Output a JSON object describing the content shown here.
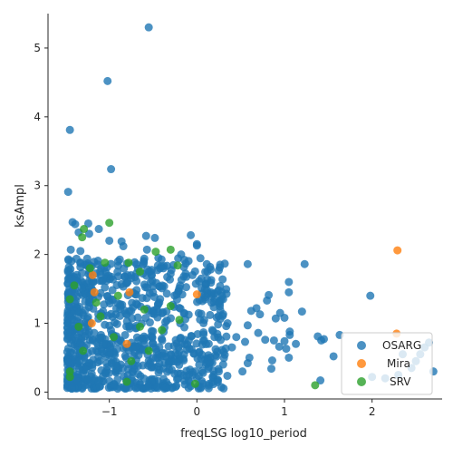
{
  "chart_data": {
    "type": "scatter",
    "title": "",
    "xlabel": "freqLSG log10_period",
    "ylabel": "ksAmpl",
    "xlim": [
      -1.7,
      2.8
    ],
    "ylim": [
      -0.1,
      5.5
    ],
    "xticks": [
      -1,
      0,
      1,
      2
    ],
    "yticks": [
      0,
      1,
      2,
      3,
      4,
      5
    ],
    "xtick_labels": [
      "−1",
      "0",
      "1",
      "2"
    ],
    "ytick_labels": [
      "0",
      "1",
      "2",
      "3",
      "4",
      "5"
    ],
    "grid": false,
    "legend_position": "lower-right",
    "marker_alpha": 0.8,
    "series": [
      {
        "name": "OSARG",
        "color": "#1f77b4",
        "points": [
          [
            -0.55,
            5.3
          ],
          [
            -1.02,
            4.52
          ],
          [
            -1.45,
            3.81
          ],
          [
            -0.98,
            3.24
          ],
          [
            -1.47,
            2.91
          ],
          [
            -1.42,
            2.47
          ],
          [
            -1.39,
            2.44
          ],
          [
            -1.24,
            2.45
          ],
          [
            -1.12,
            2.37
          ],
          [
            -1.35,
            2.32
          ],
          [
            -1.23,
            2.3
          ],
          [
            -0.86,
            2.19
          ],
          [
            -0.58,
            2.27
          ],
          [
            -0.48,
            2.24
          ],
          [
            -0.07,
            2.28
          ],
          [
            0.0,
            2.15
          ],
          [
            0.0,
            2.13
          ],
          [
            -0.84,
            2.12
          ],
          [
            -1.0,
            2.2
          ],
          [
            -0.57,
            2.07
          ],
          [
            -1.44,
            2.07
          ],
          [
            -1.33,
            2.05
          ],
          [
            -0.18,
            2.0
          ],
          [
            -0.44,
            1.95
          ],
          [
            -0.9,
            1.9
          ],
          [
            0.58,
            1.86
          ],
          [
            1.23,
            1.86
          ],
          [
            1.05,
            1.6
          ],
          [
            1.05,
            1.45
          ],
          [
            0.82,
            1.41
          ],
          [
            0.8,
            1.33
          ],
          [
            0.68,
            1.22
          ],
          [
            0.62,
            1.18
          ],
          [
            0.95,
            1.15
          ],
          [
            0.9,
            1.07
          ],
          [
            1.0,
            1.08
          ],
          [
            1.2,
            1.17
          ],
          [
            0.72,
            1.13
          ],
          [
            0.58,
            0.97
          ],
          [
            0.7,
            0.86
          ],
          [
            0.78,
            0.76
          ],
          [
            0.88,
            0.75
          ],
          [
            1.0,
            0.74
          ],
          [
            1.06,
            0.88
          ],
          [
            1.06,
            0.83
          ],
          [
            0.94,
            0.66
          ],
          [
            1.02,
            0.63
          ],
          [
            1.13,
            0.7
          ],
          [
            0.86,
            0.46
          ],
          [
            1.05,
            0.5
          ],
          [
            1.38,
            0.81
          ],
          [
            1.42,
            0.75
          ],
          [
            1.45,
            0.77
          ],
          [
            1.63,
            0.83
          ],
          [
            1.56,
            0.52
          ],
          [
            1.41,
            0.17
          ],
          [
            1.98,
            1.4
          ],
          [
            0.85,
            0.34
          ],
          [
            0.55,
            0.73
          ],
          [
            0.58,
            0.42
          ],
          [
            0.52,
            0.3
          ],
          [
            0.4,
            0.65
          ],
          [
            0.3,
            0.4
          ],
          [
            0.25,
            0.3
          ],
          [
            0.6,
            0.5
          ],
          [
            0.45,
            0.8
          ],
          [
            0.35,
            1.0
          ],
          [
            0.3,
            1.35
          ],
          [
            0.25,
            1.3
          ],
          [
            0.2,
            1.43
          ],
          [
            0.15,
            1.12
          ],
          [
            0.1,
            1.38
          ],
          [
            0.05,
            1.65
          ],
          [
            0.12,
            1.75
          ],
          [
            -0.05,
            1.7
          ],
          [
            -0.15,
            1.68
          ],
          [
            -0.3,
            1.72
          ],
          [
            -0.02,
            0.3
          ],
          [
            -0.05,
            0.25
          ],
          [
            0.0,
            0.2
          ],
          [
            2.0,
            0.22
          ],
          [
            2.15,
            0.2
          ],
          [
            2.3,
            0.25
          ],
          [
            2.45,
            0.35
          ],
          [
            2.55,
            0.55
          ],
          [
            2.6,
            0.65
          ],
          [
            2.5,
            0.45
          ],
          [
            2.65,
            0.72
          ],
          [
            2.7,
            0.3
          ],
          [
            2.35,
            0.55
          ]
        ],
        "dense_region": {
          "x_range": [
            -1.48,
            0.35
          ],
          "y_range": [
            0.05,
            1.95
          ],
          "note": "heavily overplotted cluster"
        }
      },
      {
        "name": "Mira",
        "color": "#ff7f0e",
        "points": [
          [
            2.29,
            2.06
          ],
          [
            2.28,
            0.85
          ],
          [
            -1.19,
            1.7
          ],
          [
            -1.17,
            1.45
          ],
          [
            -0.77,
            1.45
          ],
          [
            0.0,
            1.42
          ],
          [
            -1.2,
            1.0
          ],
          [
            -0.8,
            0.7
          ]
        ]
      },
      {
        "name": "SRV",
        "color": "#2ca02c",
        "points": [
          [
            -1.0,
            2.46
          ],
          [
            -1.29,
            2.37
          ],
          [
            -1.31,
            2.25
          ],
          [
            -0.3,
            2.07
          ],
          [
            -0.47,
            2.04
          ],
          [
            -0.65,
            1.75
          ],
          [
            -0.78,
            1.88
          ],
          [
            -0.22,
            1.84
          ],
          [
            -1.05,
            1.88
          ],
          [
            -1.22,
            1.8
          ],
          [
            -1.45,
            1.35
          ],
          [
            -1.4,
            1.55
          ],
          [
            -0.9,
            1.4
          ],
          [
            -0.6,
            1.2
          ],
          [
            -1.1,
            1.1
          ],
          [
            -0.2,
            1.05
          ],
          [
            -0.4,
            0.9
          ],
          [
            -1.3,
            0.6
          ],
          [
            -0.75,
            0.45
          ],
          [
            -1.45,
            0.22
          ],
          [
            -1.45,
            0.3
          ],
          [
            -0.8,
            0.15
          ],
          [
            -0.02,
            0.12
          ],
          [
            1.35,
            0.1
          ],
          [
            -0.55,
            0.6
          ],
          [
            -0.95,
            0.8
          ],
          [
            -1.15,
            1.3
          ],
          [
            -0.3,
            1.25
          ],
          [
            -1.35,
            0.95
          ],
          [
            -0.65,
            0.95
          ]
        ]
      }
    ]
  }
}
